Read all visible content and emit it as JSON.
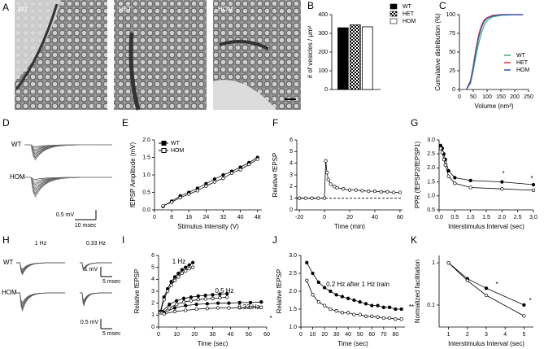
{
  "micrographs": {
    "panel": "A",
    "labels": [
      "WT",
      "HET",
      "HOM"
    ]
  },
  "traces_D": {
    "panel": "D",
    "labels": [
      "WT",
      "HOM"
    ],
    "scale": [
      "0.5 mV",
      "10 msec"
    ]
  },
  "traces_H": {
    "panel": "H",
    "labels": [
      "WT",
      "HOM"
    ],
    "conditions": [
      "1 Hz",
      "0.33 Hz"
    ],
    "scale": [
      "1 mV",
      "5 msec",
      "0.5 mV",
      "5 msec"
    ]
  },
  "chart_data": [
    {
      "panel": "B",
      "type": "bar",
      "ylabel": "# of vesicles / μm²",
      "categories": [
        null
      ],
      "legend": "outside right",
      "series": [
        {
          "name": "WT",
          "color": "#000000",
          "values": [
            330
          ]
        },
        {
          "name": "HET",
          "color": "#000000",
          "hatch": "checker",
          "values": [
            345
          ]
        },
        {
          "name": "HOM",
          "color": "#ffffff",
          "values": [
            335
          ]
        }
      ],
      "ylim": [
        0,
        400
      ],
      "yticks": [
        0,
        100,
        200,
        300,
        400
      ]
    },
    {
      "panel": "C",
      "type": "line",
      "xlabel": "Volume (nm³)",
      "ylabel": "Cumulative distribution (%)",
      "legend": "center right",
      "x": [
        25,
        40,
        50,
        60,
        70,
        80,
        90,
        100,
        120,
        150,
        200,
        230
      ],
      "series": [
        {
          "name": "WT",
          "color": "#3cb371",
          "values": [
            0,
            8,
            25,
            45,
            62,
            76,
            86,
            92,
            97,
            99,
            100,
            100
          ]
        },
        {
          "name": "HET",
          "color": "#e0303a",
          "values": [
            0,
            12,
            32,
            55,
            74,
            86,
            93,
            96,
            99,
            100,
            100,
            100
          ]
        },
        {
          "name": "HOM",
          "color": "#3050c0",
          "values": [
            0,
            10,
            30,
            52,
            70,
            83,
            91,
            95,
            98,
            100,
            100,
            100
          ]
        }
      ],
      "xlim": [
        0,
        250
      ],
      "xticks": [
        0,
        50,
        100,
        150,
        200,
        250
      ],
      "ylim": [
        0,
        100
      ],
      "yticks": [
        0,
        25,
        50,
        75,
        100
      ]
    },
    {
      "panel": "E",
      "type": "line",
      "markers": true,
      "xlabel": "Stimulus Intensity (V)",
      "ylabel": "fEPSP Amplitude (mV)",
      "legend": "upper left",
      "x": [
        4,
        8,
        12,
        16,
        20,
        24,
        28,
        32,
        36,
        40,
        44,
        48
      ],
      "series": [
        {
          "name": "WT",
          "color": "#000000",
          "filled": true,
          "values": [
            0.1,
            0.25,
            0.4,
            0.5,
            0.62,
            0.75,
            0.88,
            1.0,
            1.1,
            1.22,
            1.35,
            1.5
          ]
        },
        {
          "name": "HOM",
          "color": "#000000",
          "filled": false,
          "values": [
            0.12,
            0.22,
            0.35,
            0.45,
            0.55,
            0.68,
            0.8,
            0.9,
            1.05,
            1.15,
            1.3,
            1.45
          ]
        }
      ],
      "xlim": [
        0,
        50
      ],
      "xticks": [
        0,
        8,
        16,
        24,
        32,
        40,
        48
      ],
      "ylim": [
        0,
        2
      ],
      "yticks": [
        {
          "value": 0,
          "label": "0.0"
        },
        0.5,
        {
          "value": 1,
          "label": "1.0"
        },
        1.5,
        {
          "value": 2,
          "label": "2.0"
        }
      ]
    },
    {
      "panel": "F",
      "type": "line",
      "markers": true,
      "xlabel": "Time (min)",
      "ylabel": "Relative fEPSP",
      "reference_line": 1,
      "x": [
        -20,
        -15,
        -10,
        -5,
        0,
        1,
        2,
        3,
        5,
        8,
        10,
        15,
        20,
        25,
        30,
        35,
        40,
        45,
        50,
        55,
        60
      ],
      "series": [
        {
          "color": "#000000",
          "filled": false,
          "values": [
            1,
            1,
            1,
            1,
            1,
            4.2,
            3.2,
            2.6,
            2.2,
            2.0,
            1.9,
            1.8,
            1.7,
            1.7,
            1.65,
            1.6,
            1.6,
            1.55,
            1.55,
            1.5,
            1.5
          ]
        }
      ],
      "xlim": [
        -22,
        62
      ],
      "xticks": [
        -20,
        0,
        20,
        40,
        60
      ],
      "ylim": [
        0,
        6
      ],
      "yticks": [
        0,
        1,
        2,
        3,
        4,
        5,
        6
      ]
    },
    {
      "panel": "G",
      "type": "line",
      "markers": true,
      "xlabel": "Interstimulus Interval (sec)",
      "ylabel": "PPR  (fEPSP2/fEPSP1)",
      "annotations": [
        "*",
        "*"
      ],
      "x": [
        0.05,
        0.1,
        0.15,
        0.2,
        0.3,
        0.5,
        1.0,
        2.0,
        3.0
      ],
      "series": [
        {
          "color": "#000000",
          "filled": true,
          "values": [
            2.8,
            2.7,
            2.5,
            2.3,
            1.9,
            1.65,
            1.55,
            1.5,
            1.4
          ]
        },
        {
          "color": "#000000",
          "filled": false,
          "values": [
            2.7,
            2.55,
            2.3,
            2.1,
            1.7,
            1.45,
            1.3,
            1.25,
            1.2
          ]
        }
      ],
      "xlim": [
        0,
        3
      ],
      "xticks": [
        {
          "value": 0,
          "label": "0.0"
        },
        0.5,
        {
          "value": 1,
          "label": "1.0"
        },
        1.5,
        {
          "value": 2,
          "label": "2.0"
        },
        2.5,
        {
          "value": 3,
          "label": "3.0"
        }
      ],
      "ylim": [
        0.5,
        3
      ],
      "yticks": [
        0.5,
        {
          "value": 1,
          "label": "1.0"
        },
        1.5,
        {
          "value": 2,
          "label": "2.0"
        },
        2.5,
        {
          "value": 3,
          "label": "3.0"
        }
      ]
    },
    {
      "panel": "I",
      "type": "line",
      "markers": true,
      "xlabel": "Time (sec)",
      "ylabel": "Relative fEPSP",
      "annotations": [
        "1 Hz",
        "0.5 Hz",
        "0.33 Hz",
        "*"
      ],
      "series": [
        {
          "color": "#000000",
          "filled": true,
          "x": [
            1,
            3,
            5,
            7,
            9,
            11,
            13,
            15,
            17,
            19
          ],
          "values": [
            1.3,
            2.5,
            3.2,
            3.8,
            4.2,
            4.5,
            4.8,
            5.0,
            5.2,
            5.4
          ]
        },
        {
          "color": "#000000",
          "filled": false,
          "x": [
            1,
            3,
            5,
            7,
            9,
            11,
            13,
            15,
            17,
            19
          ],
          "values": [
            1.2,
            2.3,
            3.0,
            3.5,
            3.9,
            4.2,
            4.5,
            4.7,
            4.9,
            5.0
          ]
        },
        {
          "color": "#000000",
          "filled": true,
          "x": [
            2,
            6,
            10,
            14,
            18,
            22,
            26,
            30,
            34,
            38
          ],
          "values": [
            1.3,
            1.9,
            2.2,
            2.4,
            2.5,
            2.6,
            2.65,
            2.7,
            2.75,
            2.8
          ]
        },
        {
          "color": "#000000",
          "filled": false,
          "x": [
            2,
            6,
            10,
            14,
            18,
            22,
            26,
            30,
            34,
            38
          ],
          "values": [
            1.2,
            1.6,
            1.9,
            2.1,
            2.2,
            2.3,
            2.35,
            2.4,
            2.45,
            2.5
          ]
        },
        {
          "color": "#000000",
          "filled": true,
          "x": [
            3,
            9,
            15,
            21,
            27,
            33,
            39,
            45,
            51,
            57
          ],
          "values": [
            1.2,
            1.6,
            1.8,
            1.9,
            1.95,
            2.0,
            2.0,
            2.05,
            2.05,
            2.1
          ]
        },
        {
          "color": "#000000",
          "filled": false,
          "x": [
            3,
            9,
            15,
            21,
            27,
            33,
            39,
            45,
            51,
            57
          ],
          "values": [
            1.1,
            1.3,
            1.4,
            1.5,
            1.55,
            1.6,
            1.6,
            1.62,
            1.65,
            1.65
          ]
        }
      ],
      "xlim": [
        0,
        60
      ],
      "xticks": [
        0,
        10,
        20,
        30,
        40,
        50,
        60
      ],
      "ylim": [
        0,
        6
      ],
      "yticks": [
        0,
        1,
        2,
        3,
        4,
        5,
        6
      ]
    },
    {
      "panel": "J",
      "type": "line",
      "markers": true,
      "xlabel": "Time (sec)",
      "ylabel": "Relative fEPSP",
      "annotations": [
        "0.2 Hz after 1 Hz train",
        "**"
      ],
      "x": [
        5,
        10,
        15,
        20,
        25,
        30,
        35,
        40,
        45,
        50,
        55,
        60,
        65,
        70,
        75,
        80,
        85
      ],
      "series": [
        {
          "color": "#000000",
          "filled": true,
          "values": [
            2.8,
            2.5,
            2.25,
            2.1,
            2.0,
            1.9,
            1.85,
            1.8,
            1.75,
            1.7,
            1.65,
            1.6,
            1.6,
            1.55,
            1.55,
            1.5,
            1.5
          ]
        },
        {
          "color": "#000000",
          "filled": false,
          "values": [
            2.3,
            1.9,
            1.7,
            1.6,
            1.5,
            1.45,
            1.4,
            1.4,
            1.35,
            1.35,
            1.3,
            1.3,
            1.28,
            1.25,
            1.25,
            1.22,
            1.22
          ]
        }
      ],
      "xlim": [
        0,
        88
      ],
      "xticks": [
        0,
        10,
        20,
        30,
        40,
        50,
        60,
        70,
        80
      ],
      "ylim": [
        1,
        3
      ],
      "yticks": [
        {
          "value": 1,
          "label": "1.0"
        },
        1.5,
        {
          "value": 2,
          "label": "2.0"
        },
        2.5,
        {
          "value": 3,
          "label": "3.0"
        }
      ]
    },
    {
      "panel": "K",
      "type": "line",
      "markers": true,
      "log_y": true,
      "xlabel": "Interstimulus Interval (sec)",
      "ylabel": "Normalized facilitation",
      "annotations": [
        "*",
        "*"
      ],
      "x": [
        1,
        2,
        3,
        5
      ],
      "series": [
        {
          "color": "#000000",
          "filled": true,
          "values": [
            1,
            0.42,
            0.25,
            0.1
          ]
        },
        {
          "color": "#000000",
          "filled": false,
          "values": [
            1,
            0.38,
            0.17,
            0.055
          ]
        }
      ],
      "xlim": [
        0.5,
        5.5
      ],
      "xticks": [
        1,
        2,
        3,
        4,
        5
      ],
      "ylim": [
        0.03,
        1.5
      ],
      "yticks": [
        0.1,
        1
      ]
    }
  ]
}
